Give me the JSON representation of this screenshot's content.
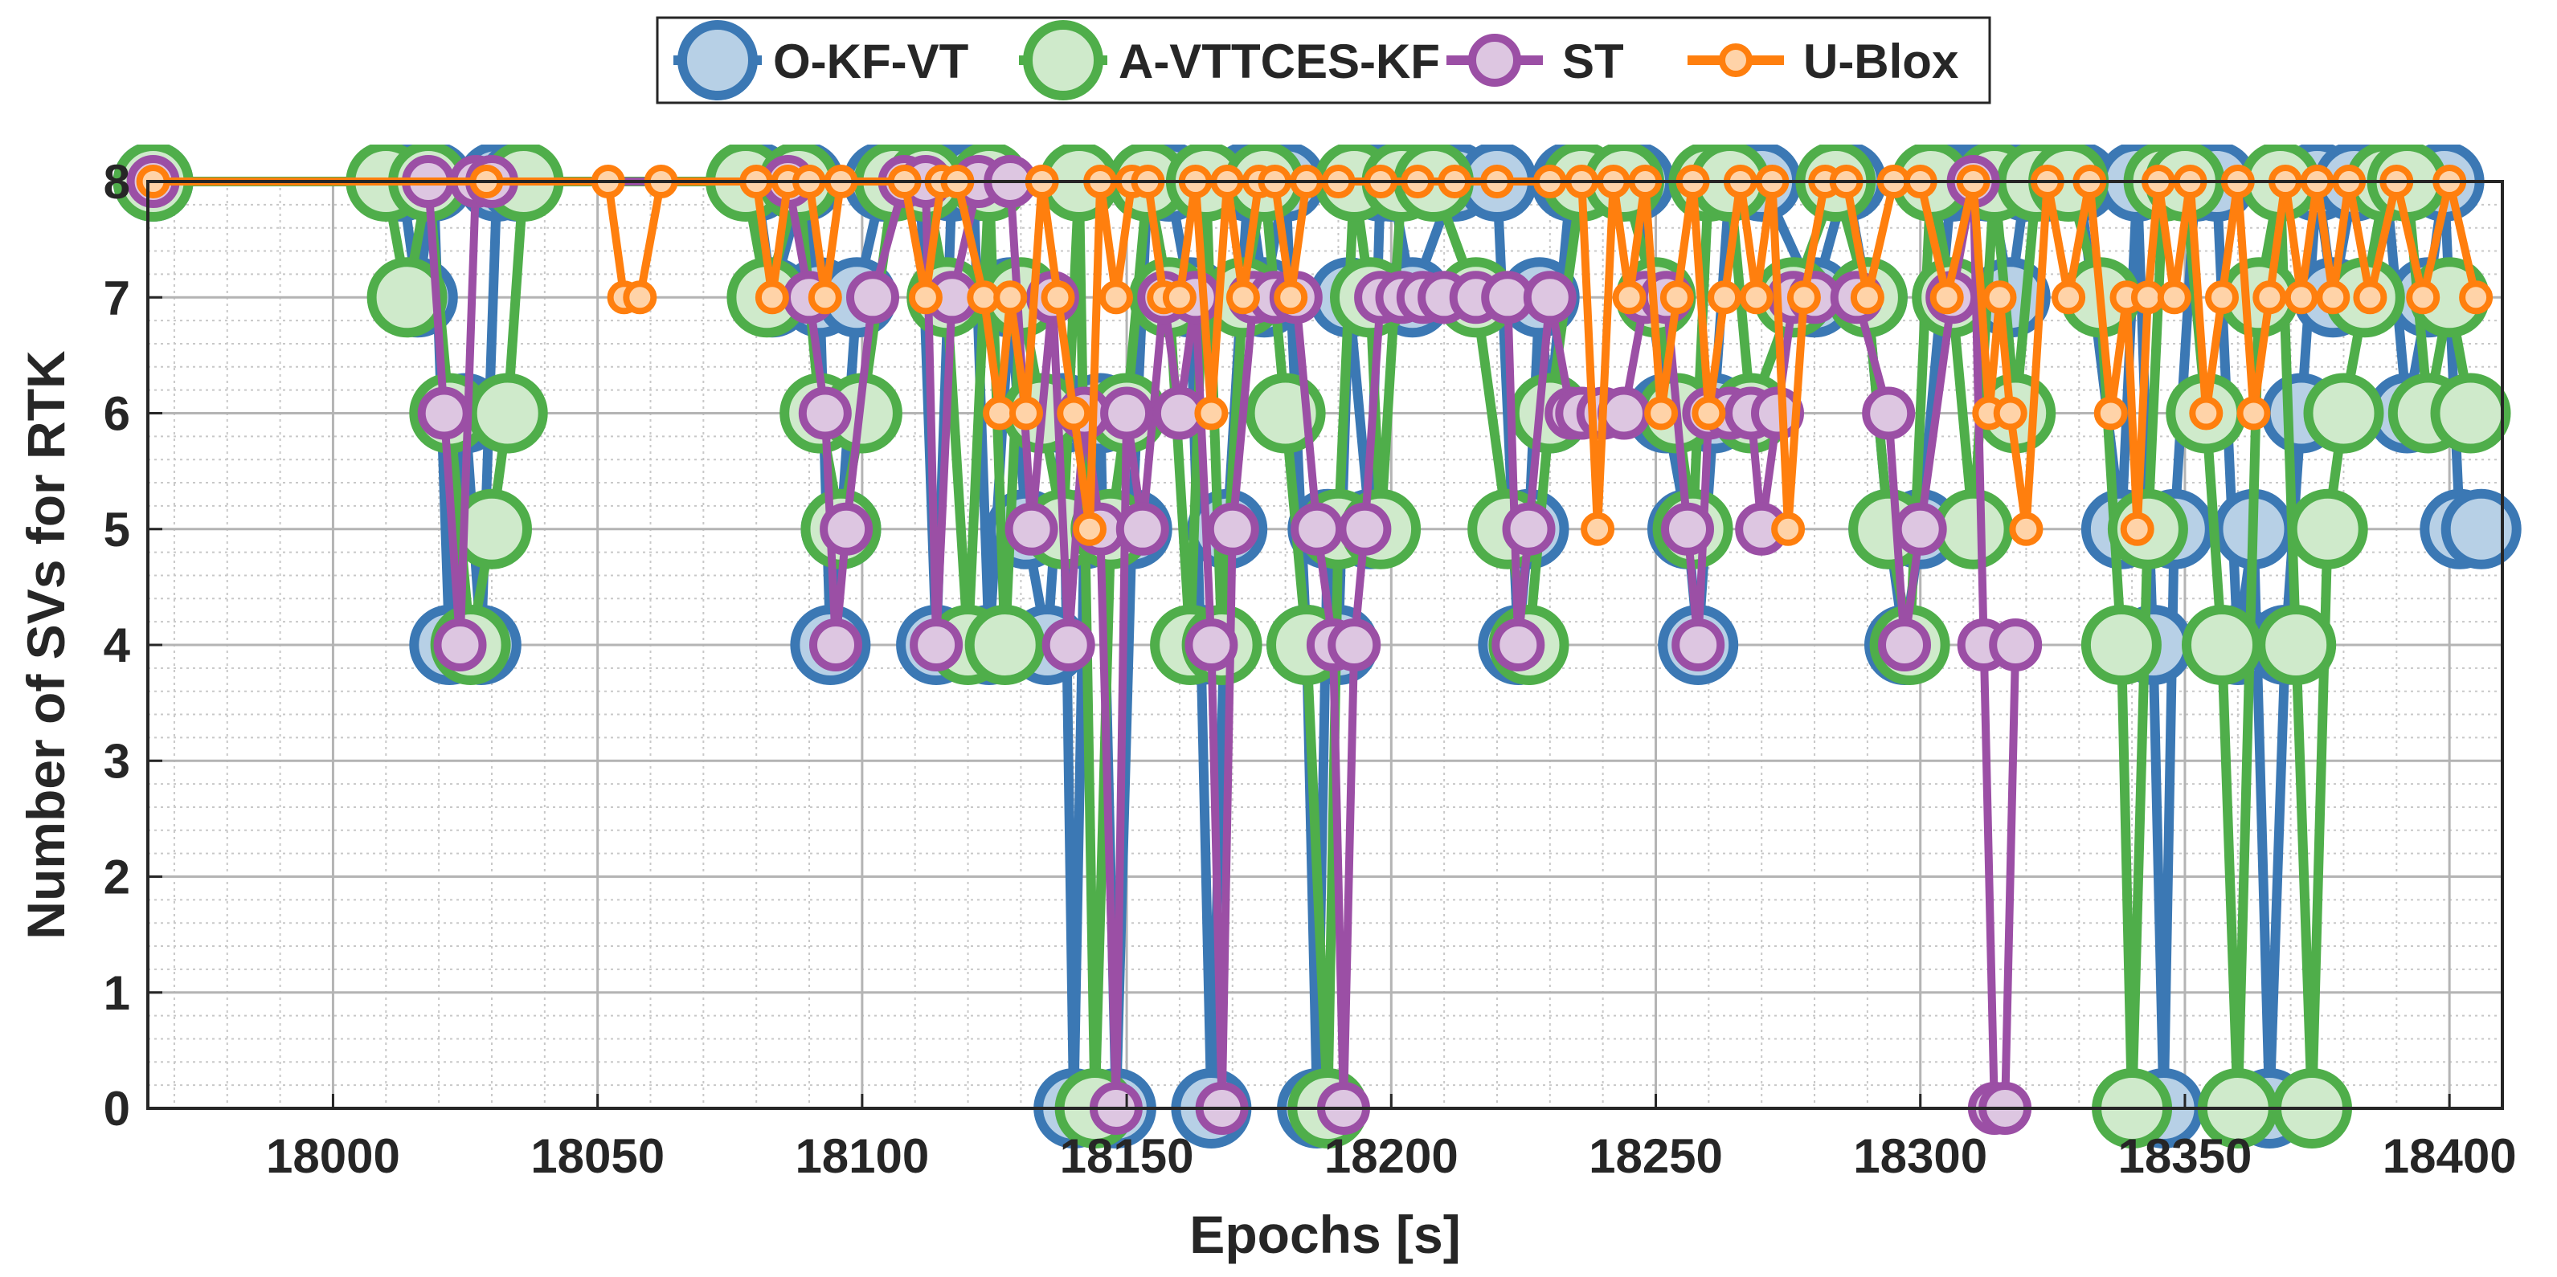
{
  "chart_data": {
    "type": "line",
    "title": "",
    "xlabel": "Epochs [s]",
    "ylabel": "Number of SVs for RTK",
    "xlim": [
      17965,
      18410
    ],
    "ylim": [
      0,
      8
    ],
    "xticks": [
      18000,
      18050,
      18100,
      18150,
      18200,
      18250,
      18300,
      18350,
      18400
    ],
    "yticks": [
      0,
      1,
      2,
      3,
      4,
      5,
      6,
      7,
      8
    ],
    "grid": true,
    "minor_grid": true,
    "legend": {
      "position": "top-center",
      "orientation": "horizontal"
    },
    "series": [
      {
        "name": "O-KF-VT",
        "color": "#3b78b4",
        "fill": "#b7d0e6",
        "x": [
          17966,
          18013,
          18016,
          18019,
          18022,
          18025,
          18028,
          18031,
          18035,
          18080,
          18083,
          18089,
          18092,
          18094,
          18096,
          18099,
          18104,
          18111,
          18114,
          18117,
          18121,
          18124,
          18128,
          18131,
          18135,
          18138,
          18140,
          18142,
          18145,
          18148,
          18151,
          18154,
          18158,
          18162,
          18164,
          18166,
          18169,
          18173,
          18176,
          18180,
          18184,
          18186,
          18188,
          18190,
          18192,
          18196,
          18198,
          18200,
          18204,
          18212,
          18220,
          18224,
          18226,
          18228,
          18230,
          18234,
          18246,
          18252,
          18256,
          18258,
          18261,
          18264,
          18270,
          18280,
          18286,
          18290,
          18294,
          18297,
          18300,
          18306,
          18310,
          18313,
          18317,
          18320,
          18324,
          18330,
          18338,
          18341,
          18344,
          18346,
          18348,
          18352,
          18356,
          18360,
          18363,
          18366,
          18369,
          18372,
          18375,
          18378,
          18382,
          18388,
          18392,
          18396,
          18399,
          18402,
          18406
        ],
        "y": [
          8,
          8,
          7,
          8,
          4,
          6,
          4,
          8,
          8,
          8,
          7,
          8,
          7,
          4,
          5,
          7,
          8,
          8,
          4,
          8,
          8,
          4,
          7,
          5,
          4,
          6,
          0,
          5,
          6,
          0,
          5,
          8,
          8,
          7,
          4,
          0,
          5,
          8,
          7,
          8,
          4,
          0,
          5,
          4,
          7,
          5,
          8,
          8,
          7,
          8,
          8,
          4,
          5,
          7,
          6,
          8,
          8,
          6,
          5,
          4,
          6,
          8,
          8,
          7,
          8,
          7,
          5,
          4,
          5,
          8,
          8,
          8,
          7,
          8,
          8,
          8,
          5,
          8,
          4,
          0,
          5,
          8,
          8,
          4,
          5,
          0,
          4,
          6,
          8,
          7,
          8,
          8,
          6,
          7,
          8,
          5,
          5
        ]
      },
      {
        "name": "A-VTTCES-KF",
        "color": "#4fae4a",
        "fill": "#cfeacb",
        "x": [
          17966,
          18010,
          18014,
          18018,
          18022,
          18026,
          18030,
          18033,
          18036,
          18078,
          18082,
          18088,
          18092,
          18096,
          18100,
          18106,
          18112,
          18116,
          18120,
          18124,
          18127,
          18130,
          18134,
          18138,
          18141,
          18144,
          18147,
          18150,
          18154,
          18158,
          18162,
          18165,
          18168,
          18172,
          18176,
          18180,
          18184,
          18188,
          18190,
          18193,
          18196,
          18198,
          18202,
          18208,
          18216,
          18222,
          18226,
          18230,
          18236,
          18244,
          18250,
          18254,
          18257,
          18260,
          18264,
          18268,
          18276,
          18284,
          18290,
          18294,
          18298,
          18302,
          18306,
          18310,
          18314,
          18318,
          18322,
          18328,
          18334,
          18338,
          18340,
          18343,
          18346,
          18350,
          18354,
          18357,
          18360,
          18364,
          18368,
          18371,
          18374,
          18377,
          18380,
          18384,
          18388,
          18392,
          18396,
          18400,
          18404
        ],
        "y": [
          8,
          8,
          7,
          8,
          6,
          4,
          5,
          6,
          8,
          8,
          7,
          8,
          6,
          5,
          6,
          8,
          8,
          7,
          4,
          8,
          4,
          7,
          6,
          5,
          8,
          0,
          5,
          6,
          8,
          7,
          4,
          8,
          4,
          7,
          8,
          6,
          4,
          0,
          5,
          8,
          7,
          5,
          8,
          8,
          7,
          5,
          4,
          6,
          8,
          8,
          7,
          6,
          5,
          8,
          8,
          6,
          7,
          8,
          7,
          5,
          4,
          8,
          7,
          5,
          8,
          6,
          8,
          8,
          7,
          4,
          0,
          5,
          8,
          8,
          6,
          4,
          0,
          7,
          8,
          4,
          0,
          5,
          6,
          7,
          8,
          8,
          6,
          7,
          6
        ]
      },
      {
        "name": "ST",
        "color": "#9b4fa5",
        "fill": "#ddc6e1",
        "x": [
          17966,
          18018,
          18021,
          18024,
          18027,
          18030,
          18086,
          18090,
          18093,
          18095,
          18097,
          18102,
          18108,
          18112,
          18114,
          18117,
          18122,
          18128,
          18132,
          18136,
          18139,
          18142,
          18145,
          18148,
          18150,
          18153,
          18157,
          18160,
          18163,
          18166,
          18168,
          18170,
          18174,
          18178,
          18182,
          18186,
          18189,
          18191,
          18193,
          18195,
          18198,
          18202,
          18206,
          18210,
          18216,
          18222,
          18224,
          18226,
          18230,
          18234,
          18236,
          18240,
          18244,
          18248,
          18252,
          18256,
          18258,
          18260,
          18264,
          18268,
          18270,
          18273,
          18276,
          18280,
          18288,
          18294,
          18297,
          18300,
          18306,
          18310,
          18312,
          18314,
          18316,
          18318
        ],
        "y": [
          8,
          8,
          6,
          4,
          8,
          8,
          8,
          7,
          6,
          4,
          5,
          7,
          8,
          8,
          4,
          7,
          8,
          8,
          5,
          7,
          4,
          6,
          5,
          0,
          6,
          5,
          7,
          6,
          7,
          4,
          0,
          5,
          7,
          7,
          7,
          5,
          4,
          0,
          4,
          5,
          7,
          7,
          7,
          7,
          7,
          7,
          4,
          5,
          7,
          6,
          6,
          6,
          6,
          7,
          7,
          5,
          4,
          6,
          6,
          6,
          5,
          6,
          7,
          7,
          7,
          6,
          4,
          5,
          7,
          8,
          4,
          0,
          0,
          4
        ]
      },
      {
        "name": "U-Blox",
        "color": "#ff7f0e",
        "fill": "#ffd3a8",
        "x": [
          17966,
          18029,
          18052,
          18055,
          18058,
          18062,
          18080,
          18083,
          18086,
          18090,
          18093,
          18096,
          18108,
          18112,
          18115,
          18118,
          18123,
          18126,
          18128,
          18131,
          18134,
          18137,
          18140,
          18143,
          18145,
          18148,
          18151,
          18154,
          18157,
          18160,
          18163,
          18166,
          18169,
          18172,
          18175,
          18178,
          18181,
          18184,
          18190,
          18198,
          18205,
          18212,
          18220,
          18230,
          18236,
          18239,
          18242,
          18245,
          18248,
          18251,
          18254,
          18257,
          18260,
          18263,
          18266,
          18269,
          18272,
          18275,
          18278,
          18282,
          18286,
          18290,
          18295,
          18300,
          18305,
          18310,
          18313,
          18315,
          18317,
          18320,
          18324,
          18328,
          18332,
          18336,
          18339,
          18341,
          18343,
          18345,
          18348,
          18351,
          18354,
          18357,
          18360,
          18363,
          18366,
          18369,
          18372,
          18375,
          18378,
          18381,
          18385,
          18390,
          18395,
          18400,
          18405
        ],
        "y": [
          8,
          8,
          8,
          7,
          7,
          8,
          8,
          7,
          8,
          8,
          7,
          8,
          8,
          7,
          8,
          8,
          7,
          6,
          7,
          6,
          8,
          7,
          6,
          5,
          8,
          7,
          8,
          8,
          7,
          7,
          8,
          6,
          8,
          7,
          8,
          8,
          7,
          8,
          8,
          8,
          8,
          8,
          8,
          8,
          8,
          5,
          8,
          7,
          8,
          6,
          7,
          8,
          6,
          7,
          8,
          7,
          8,
          5,
          7,
          8,
          8,
          7,
          8,
          8,
          7,
          8,
          6,
          7,
          6,
          5,
          8,
          7,
          8,
          6,
          7,
          5,
          7,
          8,
          7,
          8,
          6,
          7,
          8,
          6,
          7,
          8,
          7,
          8,
          7,
          8,
          7,
          8,
          7,
          8,
          7
        ]
      }
    ]
  }
}
